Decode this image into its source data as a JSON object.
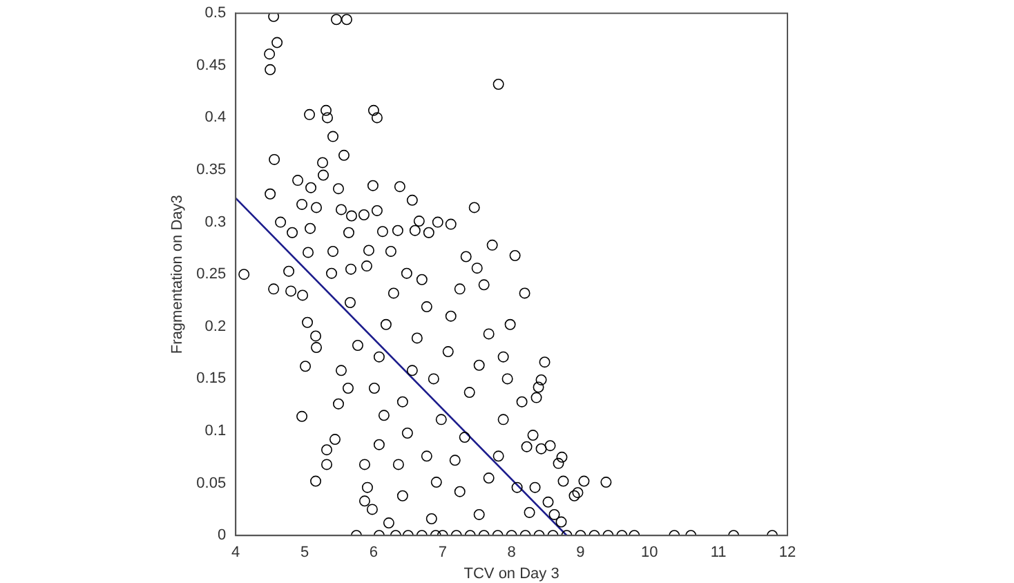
{
  "chart_data": {
    "type": "scatter",
    "xlabel": "TCV on Day 3",
    "ylabel": "Fragmentation on Day3",
    "xlim": [
      4,
      12
    ],
    "xticks": [
      4,
      5,
      6,
      7,
      8,
      9,
      10,
      11,
      12
    ],
    "ylim": [
      0,
      0.5
    ],
    "yticks": [
      0,
      0.05,
      0.1,
      0.15,
      0.2,
      0.25,
      0.3,
      0.35,
      0.4,
      0.45,
      0.5
    ],
    "marker": "circle",
    "series": [
      {
        "type": "scatter",
        "color": "#000000",
        "x": [
          4.55,
          5.46,
          5.61,
          4.6,
          4.49,
          4.5,
          7.81,
          5.07,
          5.31,
          5.33,
          6.0,
          6.05,
          5.41,
          4.56,
          5.57,
          5.26,
          4.5,
          4.9,
          5.09,
          5.27,
          5.49,
          5.99,
          6.38,
          7.46,
          4.65,
          4.96,
          5.17,
          5.53,
          5.68,
          5.86,
          6.05,
          6.56,
          6.66,
          6.93,
          7.12,
          5.08,
          5.64,
          4.82,
          6.13,
          6.35,
          6.6,
          6.8,
          5.05,
          5.41,
          5.93,
          6.25,
          7.34,
          7.72,
          8.05,
          4.12,
          4.77,
          5.39,
          5.67,
          5.9,
          6.48,
          7.5,
          4.55,
          4.8,
          4.97,
          5.04,
          5.16,
          5.17,
          5.01,
          4.96,
          5.16,
          5.32,
          5.32,
          5.44,
          5.49,
          5.53,
          5.63,
          5.77,
          5.66,
          5.87,
          5.91,
          5.87,
          5.98,
          6.08,
          6.15,
          6.01,
          6.08,
          6.18,
          6.29,
          6.22,
          6.42,
          6.36,
          6.49,
          6.42,
          6.56,
          6.63,
          6.77,
          6.7,
          6.84,
          6.91,
          6.77,
          6.98,
          6.87,
          7.08,
          7.12,
          7.25,
          7.25,
          7.18,
          7.32,
          7.39,
          7.53,
          7.67,
          7.6,
          7.53,
          7.67,
          7.81,
          7.88,
          7.94,
          7.98,
          8.19,
          8.26,
          8.08,
          8.22,
          8.15,
          7.88,
          8.48,
          8.43,
          8.39,
          8.36,
          8.31,
          8.43,
          8.56,
          8.68,
          8.73,
          8.75,
          9.05,
          9.37,
          8.91,
          8.96,
          8.53,
          8.62,
          8.72,
          8.34,
          5.75,
          6.08,
          6.32,
          6.5,
          6.7,
          6.9,
          7.0,
          7.2,
          7.4,
          7.6,
          7.8,
          8.0,
          8.2,
          8.4,
          8.6,
          8.8,
          9.0,
          9.2,
          9.4,
          9.6,
          9.78,
          10.36,
          10.6,
          11.22,
          11.78
        ],
        "values": [
          0.497,
          0.494,
          0.494,
          0.472,
          0.461,
          0.446,
          0.432,
          0.403,
          0.407,
          0.4,
          0.407,
          0.4,
          0.382,
          0.36,
          0.364,
          0.357,
          0.327,
          0.34,
          0.333,
          0.345,
          0.332,
          0.335,
          0.334,
          0.314,
          0.3,
          0.317,
          0.314,
          0.312,
          0.306,
          0.307,
          0.311,
          0.321,
          0.301,
          0.3,
          0.298,
          0.294,
          0.29,
          0.29,
          0.291,
          0.292,
          0.292,
          0.29,
          0.271,
          0.272,
          0.273,
          0.272,
          0.267,
          0.278,
          0.268,
          0.25,
          0.253,
          0.251,
          0.255,
          0.258,
          0.251,
          0.256,
          0.236,
          0.234,
          0.23,
          0.204,
          0.191,
          0.18,
          0.162,
          0.114,
          0.052,
          0.068,
          0.082,
          0.092,
          0.126,
          0.158,
          0.141,
          0.182,
          0.223,
          0.068,
          0.046,
          0.033,
          0.025,
          0.087,
          0.115,
          0.141,
          0.171,
          0.202,
          0.232,
          0.012,
          0.038,
          0.068,
          0.098,
          0.128,
          0.158,
          0.189,
          0.219,
          0.245,
          0.016,
          0.051,
          0.076,
          0.111,
          0.15,
          0.176,
          0.21,
          0.236,
          0.042,
          0.072,
          0.094,
          0.137,
          0.163,
          0.193,
          0.24,
          0.02,
          0.055,
          0.076,
          0.111,
          0.15,
          0.202,
          0.232,
          0.022,
          0.046,
          0.085,
          0.128,
          0.171,
          0.166,
          0.149,
          0.142,
          0.132,
          0.096,
          0.083,
          0.086,
          0.069,
          0.075,
          0.052,
          0.052,
          0.051,
          0.038,
          0.041,
          0.032,
          0.02,
          0.013,
          0.046,
          0,
          0,
          0,
          0,
          0,
          0,
          0,
          0,
          0,
          0,
          0,
          0,
          0,
          0,
          0,
          0,
          0,
          0,
          0,
          0,
          0,
          0,
          0,
          0,
          0
        ]
      },
      {
        "type": "line",
        "color": "#1c1c8c",
        "marker": "none",
        "x": [
          4,
          8.8
        ],
        "values": [
          0.323,
          0
        ]
      }
    ]
  }
}
